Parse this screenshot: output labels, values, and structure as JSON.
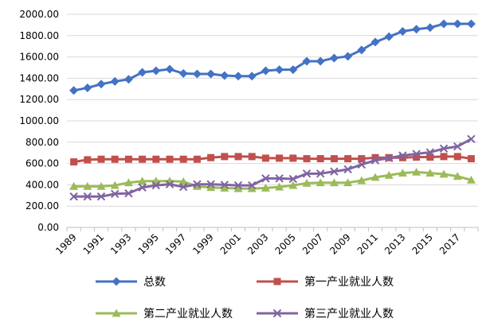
{
  "chart_data": {
    "type": "line",
    "title": "",
    "xlabel": "",
    "ylabel": "",
    "ylim": [
      0,
      2000
    ],
    "y_ticks": [
      "0.00",
      "200.00",
      "400.00",
      "600.00",
      "800.00",
      "1000.00",
      "1200.00",
      "1400.00",
      "1600.00",
      "1800.00",
      "2000.00"
    ],
    "x": [
      1989,
      1990,
      1991,
      1992,
      1993,
      1994,
      1995,
      1996,
      1997,
      1998,
      1999,
      2000,
      2001,
      2002,
      2003,
      2004,
      2005,
      2006,
      2007,
      2008,
      2009,
      2010,
      2011,
      2012,
      2013,
      2014,
      2015,
      2016,
      2017,
      2018
    ],
    "x_tick_labels": [
      "1989",
      "1991",
      "1993",
      "1995",
      "1997",
      "1999",
      "2001",
      "2003",
      "2005",
      "2007",
      "2009",
      "2011",
      "2013",
      "2015",
      "2017"
    ],
    "grid": "horizontal",
    "legend_position": "bottom",
    "series": [
      {
        "name": "总数",
        "color": "#4472C4",
        "marker": "diamond",
        "values": [
          1285,
          1310,
          1345,
          1370,
          1390,
          1455,
          1470,
          1485,
          1445,
          1440,
          1440,
          1425,
          1420,
          1420,
          1470,
          1480,
          1480,
          1560,
          1560,
          1590,
          1605,
          1665,
          1740,
          1790,
          1840,
          1860,
          1875,
          1910,
          1910,
          1910
        ]
      },
      {
        "name": "第一产业就业人数",
        "color": "#C0504D",
        "marker": "square",
        "values": [
          615,
          635,
          640,
          640,
          640,
          640,
          640,
          640,
          640,
          640,
          655,
          665,
          665,
          665,
          650,
          650,
          650,
          645,
          645,
          645,
          645,
          645,
          655,
          655,
          655,
          660,
          660,
          665,
          665,
          645
        ]
      },
      {
        "name": "第二产业就业人数",
        "color": "#9BBB59",
        "marker": "triangle",
        "values": [
          385,
          385,
          385,
          395,
          420,
          435,
          435,
          435,
          430,
          385,
          375,
          370,
          365,
          365,
          370,
          380,
          395,
          415,
          420,
          420,
          420,
          440,
          470,
          490,
          510,
          520,
          510,
          500,
          480,
          445
        ]
      },
      {
        "name": "第三产业就业人数",
        "color": "#8064A2",
        "marker": "x",
        "values": [
          290,
          290,
          290,
          315,
          320,
          375,
          395,
          405,
          380,
          405,
          405,
          400,
          395,
          395,
          460,
          460,
          455,
          505,
          505,
          525,
          545,
          590,
          630,
          650,
          675,
          690,
          705,
          740,
          760,
          830
        ]
      }
    ]
  }
}
